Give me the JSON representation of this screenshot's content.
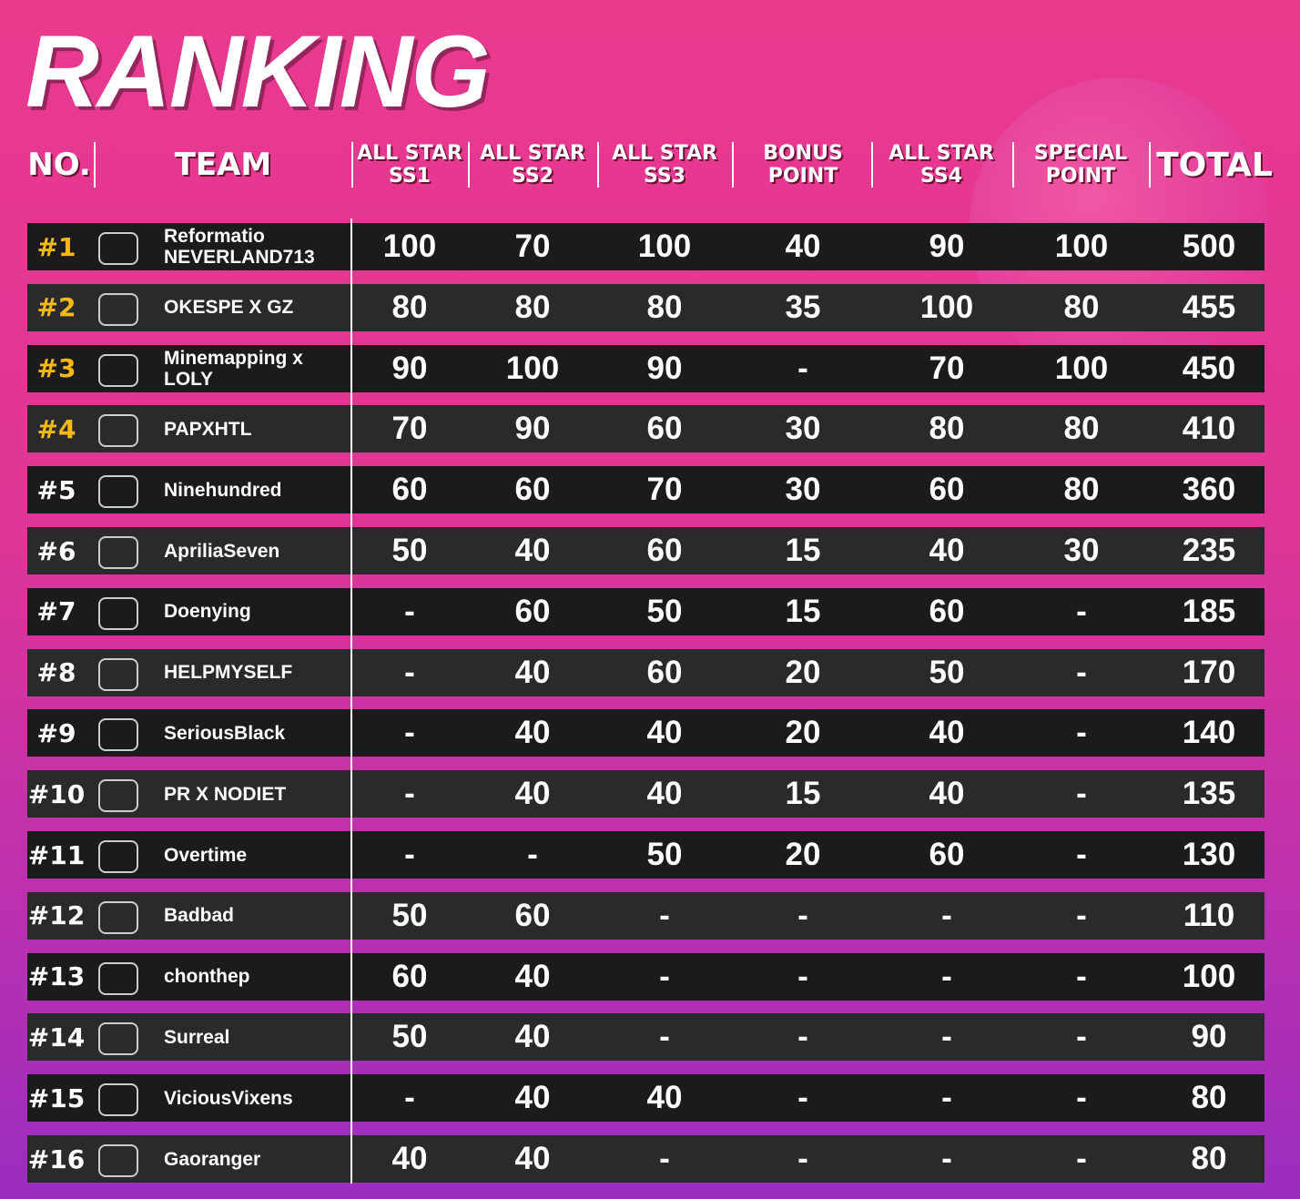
{
  "header": {
    "title": "RANKING"
  },
  "table": {
    "columns": [
      "NO.",
      "TEAM",
      "ALL STAR SS1",
      "ALL STAR SS2",
      "ALL STAR SS3",
      "BONUS POINT",
      "ALL STAR SS4",
      "SPECIAL POINT",
      "TOTAL"
    ],
    "rows": [
      {
        "rank": "#1",
        "team": "Reformatio NEVERLAND713",
        "values": [
          100,
          70,
          100,
          40,
          90,
          100,
          500
        ]
      },
      {
        "rank": "#2",
        "team": "OKESPE X GZ",
        "values": [
          80,
          80,
          80,
          35,
          100,
          80,
          455
        ]
      },
      {
        "rank": "#3",
        "team": "Minemapping x LOLY",
        "values": [
          90,
          100,
          90,
          "-",
          70,
          100,
          450
        ]
      },
      {
        "rank": "#4",
        "team": "PAPXHTL",
        "values": [
          70,
          90,
          60,
          30,
          80,
          80,
          410
        ]
      },
      {
        "rank": "#5",
        "team": "Ninehundred",
        "values": [
          60,
          60,
          70,
          30,
          60,
          80,
          360
        ]
      },
      {
        "rank": "#6",
        "team": "ApriliaSeven",
        "values": [
          50,
          40,
          60,
          15,
          40,
          30,
          235
        ]
      },
      {
        "rank": "#7",
        "team": "Doenying",
        "values": [
          "-",
          60,
          50,
          15,
          60,
          "-",
          185
        ]
      },
      {
        "rank": "#8",
        "team": "HELPMYSELF",
        "values": [
          "-",
          40,
          60,
          20,
          50,
          "-",
          170
        ]
      },
      {
        "rank": "#9",
        "team": "SeriousBlack",
        "values": [
          "-",
          40,
          40,
          20,
          40,
          "-",
          140
        ]
      },
      {
        "rank": "#10",
        "team": "PR X NODIET",
        "values": [
          "-",
          40,
          40,
          15,
          40,
          "-",
          135
        ]
      },
      {
        "rank": "#11",
        "team": "Overtime",
        "values": [
          "-",
          "-",
          50,
          20,
          60,
          "-",
          130
        ]
      },
      {
        "rank": "#12",
        "team": "Badbad",
        "values": [
          50,
          60,
          "-",
          "-",
          "-",
          "-",
          110
        ]
      },
      {
        "rank": "#13",
        "team": "chonthep",
        "values": [
          60,
          40,
          "-",
          "-",
          "-",
          "-",
          100
        ]
      },
      {
        "rank": "#14",
        "team": "Surreal",
        "values": [
          50,
          40,
          "-",
          "-",
          "-",
          "-",
          90
        ]
      },
      {
        "rank": "#15",
        "team": "ViciousVixens",
        "values": [
          "-",
          40,
          40,
          "-",
          "-",
          "-",
          80
        ]
      },
      {
        "rank": "#16",
        "team": "Gaoranger",
        "values": [
          40,
          40,
          "-",
          "-",
          "-",
          "-",
          80
        ]
      }
    ]
  }
}
